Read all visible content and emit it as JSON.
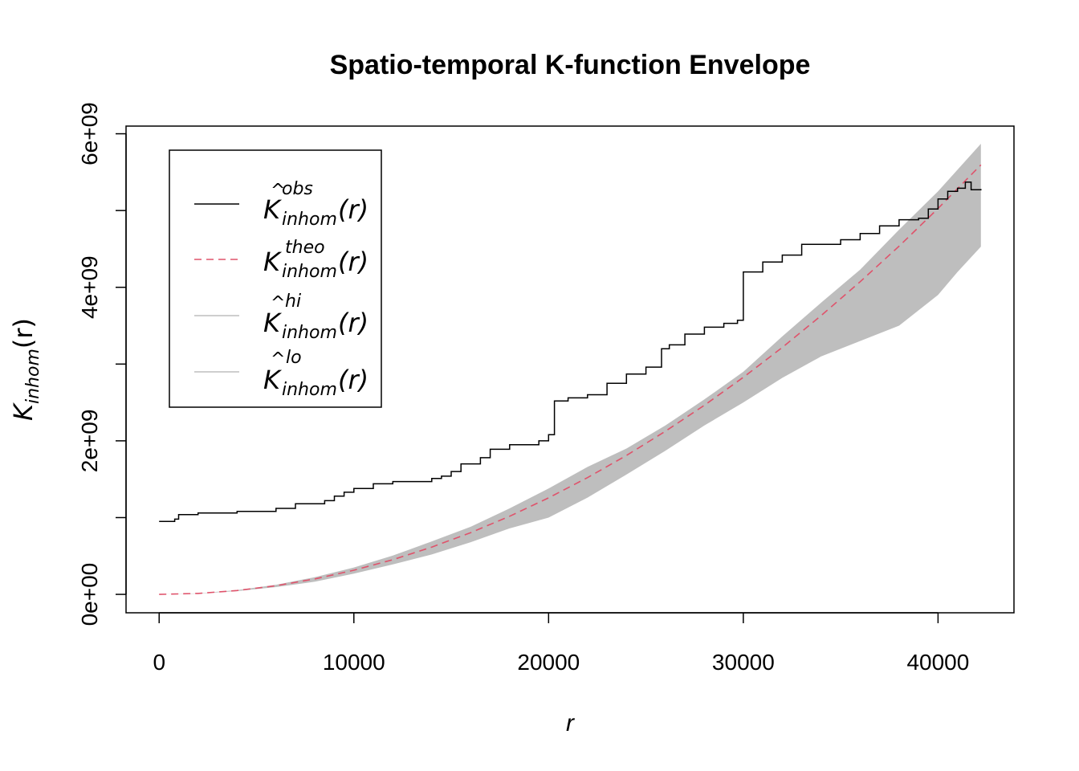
{
  "chart_data": {
    "type": "line",
    "title": "Spatio-temporal K-function Envelope",
    "xlabel": "r",
    "ylabel": {
      "main": "K",
      "sub": "inhom",
      "arg": "(r)"
    },
    "xlim": [
      -1700,
      43900
    ],
    "ylim": [
      -240000000,
      6100000000
    ],
    "x_ticks": [
      {
        "value": 0,
        "label": "0"
      },
      {
        "value": 10000,
        "label": "10000"
      },
      {
        "value": 20000,
        "label": "20000"
      },
      {
        "value": 30000,
        "label": "30000"
      },
      {
        "value": 40000,
        "label": "40000"
      }
    ],
    "y_ticks": [
      {
        "value": 0,
        "label": "0e+00"
      },
      {
        "value": 1000000000,
        "label": ""
      },
      {
        "value": 2000000000,
        "label": "2e+09"
      },
      {
        "value": 3000000000,
        "label": ""
      },
      {
        "value": 4000000000,
        "label": "4e+09"
      },
      {
        "value": 5000000000,
        "label": ""
      },
      {
        "value": 6000000000,
        "label": "6e+09"
      }
    ],
    "legend_position": "top-left",
    "legend": [
      {
        "key": "obs",
        "main": "K",
        "hat": true,
        "sub": "inhom",
        "sup": "obs",
        "arg": "(r)",
        "color": "#000000",
        "dash": ""
      },
      {
        "key": "theo",
        "main": "K",
        "hat": false,
        "sub": "inhom",
        "sup": "theo",
        "arg": "(r)",
        "color": "#DF536B",
        "dash": "9,6"
      },
      {
        "key": "hi",
        "main": "K",
        "hat": true,
        "sub": "inhom",
        "sup": "hi",
        "arg": "(r)",
        "color": "#BEBEBE",
        "dash": ""
      },
      {
        "key": "lo",
        "main": "K",
        "hat": true,
        "sub": "inhom",
        "sup": "lo",
        "arg": "(r)",
        "color": "#BEBEBE",
        "dash": ""
      }
    ],
    "series": [
      {
        "name": "obs",
        "color": "#000000",
        "x": [
          0,
          800,
          1000,
          2000,
          4000,
          6000,
          7000,
          8500,
          9000,
          9500,
          10000,
          11000,
          12000,
          14000,
          14500,
          15000,
          15500,
          16500,
          17000,
          18000,
          19500,
          20000,
          20300,
          21000,
          22000,
          23000,
          24000,
          25000,
          25800,
          26200,
          27000,
          28000,
          29000,
          29700,
          30000,
          31000,
          32000,
          33000,
          35000,
          36000,
          37000,
          38000,
          39000,
          39500,
          40000,
          40500,
          41000,
          41400,
          41700,
          42200
        ],
        "y": [
          950000000,
          980000000,
          1040000000,
          1060000000,
          1080000000,
          1120000000,
          1180000000,
          1220000000,
          1280000000,
          1330000000,
          1380000000,
          1440000000,
          1470000000,
          1510000000,
          1540000000,
          1600000000,
          1700000000,
          1780000000,
          1890000000,
          1950000000,
          2000000000,
          2080000000,
          2520000000,
          2560000000,
          2600000000,
          2750000000,
          2870000000,
          2960000000,
          3200000000,
          3250000000,
          3390000000,
          3480000000,
          3530000000,
          3570000000,
          4200000000,
          4330000000,
          4420000000,
          4560000000,
          4620000000,
          4700000000,
          4800000000,
          4880000000,
          4900000000,
          5020000000,
          5150000000,
          5250000000,
          5290000000,
          5370000000,
          5270000000,
          5280000000
        ]
      },
      {
        "name": "theo",
        "color": "#DF536B",
        "x": [
          0,
          2000,
          4000,
          6000,
          8000,
          10000,
          12000,
          14000,
          16000,
          18000,
          20000,
          22000,
          24000,
          26000,
          28000,
          30000,
          32000,
          34000,
          36000,
          38000,
          40000,
          42200
        ],
        "y": [
          0,
          12000000,
          50000000,
          113000000,
          201000000,
          314000000,
          452000000,
          616000000,
          804000000,
          1018000000,
          1257000000,
          1521000000,
          1810000000,
          2124000000,
          2463000000,
          2827000000,
          3217000000,
          3632000000,
          4072000000,
          4536000000,
          5027000000,
          5595000000
        ]
      },
      {
        "name": "hi",
        "color": "#BEBEBE",
        "x": [
          0,
          2000,
          4000,
          6000,
          8000,
          10000,
          12000,
          14000,
          16000,
          18000,
          20000,
          22000,
          24000,
          26000,
          28000,
          30000,
          32000,
          34000,
          36000,
          38000,
          40000,
          42200
        ],
        "y": [
          0,
          13000000,
          55000000,
          125000000,
          225000000,
          350000000,
          505000000,
          690000000,
          880000000,
          1120000000,
          1380000000,
          1660000000,
          1900000000,
          2200000000,
          2540000000,
          2900000000,
          3360000000,
          3800000000,
          4230000000,
          4750000000,
          5250000000,
          5870000000
        ]
      },
      {
        "name": "lo",
        "color": "#BEBEBE",
        "x": [
          0,
          2000,
          4000,
          6000,
          8000,
          10000,
          12000,
          14000,
          16000,
          18000,
          20000,
          22000,
          24000,
          26000,
          28000,
          30000,
          32000,
          34000,
          36000,
          38000,
          40000,
          41000,
          42200
        ],
        "y": [
          0,
          10000000,
          42000000,
          95000000,
          165000000,
          270000000,
          390000000,
          520000000,
          680000000,
          860000000,
          1000000000,
          1260000000,
          1560000000,
          1870000000,
          2200000000,
          2500000000,
          2820000000,
          3100000000,
          3300000000,
          3500000000,
          3900000000,
          4200000000,
          4530000000
        ]
      }
    ],
    "grid": false
  }
}
